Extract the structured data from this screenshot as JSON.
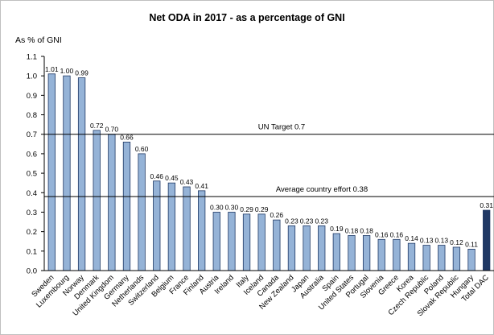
{
  "chart_data": {
    "type": "bar",
    "title": "Net ODA in 2017 - as a percentage of GNI",
    "ylabel": "As % of GNI",
    "xlabel": "",
    "ylim": [
      0,
      1.1
    ],
    "yticks": [
      "0.0",
      "0.1",
      "0.2",
      "0.3",
      "0.4",
      "0.5",
      "0.6",
      "0.7",
      "0.8",
      "0.9",
      "1.0",
      "1.1"
    ],
    "categories": [
      "Sweden",
      "Luxembourg",
      "Norway",
      "Denmark",
      "United Kingdom",
      "Germany",
      "Netherlands",
      "Switzerland",
      "Belgium",
      "France",
      "Finland",
      "Austria",
      "Ireland",
      "Italy",
      "Iceland",
      "Canada",
      "New Zealand",
      "Japan",
      "Australia",
      "Spain",
      "United States",
      "Portugal",
      "Slovenia",
      "Greece",
      "Korea",
      "Czech Republic",
      "Poland",
      "Slovak Republic",
      "Hungary",
      "Total DAC"
    ],
    "values": [
      1.01,
      1.0,
      0.99,
      0.72,
      0.7,
      0.66,
      0.6,
      0.46,
      0.45,
      0.43,
      0.41,
      0.3,
      0.3,
      0.29,
      0.29,
      0.26,
      0.23,
      0.23,
      0.23,
      0.19,
      0.18,
      0.18,
      0.16,
      0.16,
      0.14,
      0.13,
      0.13,
      0.12,
      0.11,
      0.31
    ],
    "value_labels": [
      "1.01",
      "1.00",
      "0.99",
      "0.72",
      "0.70",
      "0.66",
      "0.60",
      "0.46",
      "0.45",
      "0.43",
      "0.41",
      "0.30",
      "0.30",
      "0.29",
      "0.29",
      "0.26",
      "0.23",
      "0.23",
      "0.23",
      "0.19",
      "0.18",
      "0.18",
      "0.16",
      "0.16",
      "0.14",
      "0.13",
      "0.13",
      "0.12",
      "0.11",
      "0.31"
    ],
    "reference_lines": [
      {
        "label": "UN Target 0.7",
        "value": 0.7
      },
      {
        "label": "Average country effort 0.38",
        "value": 0.38
      }
    ],
    "grid": false,
    "colors": {
      "bar": "#95b3d7",
      "bar_stroke": "#1f3864",
      "highlight": "#1f3864",
      "reference_line": "#000000"
    }
  }
}
